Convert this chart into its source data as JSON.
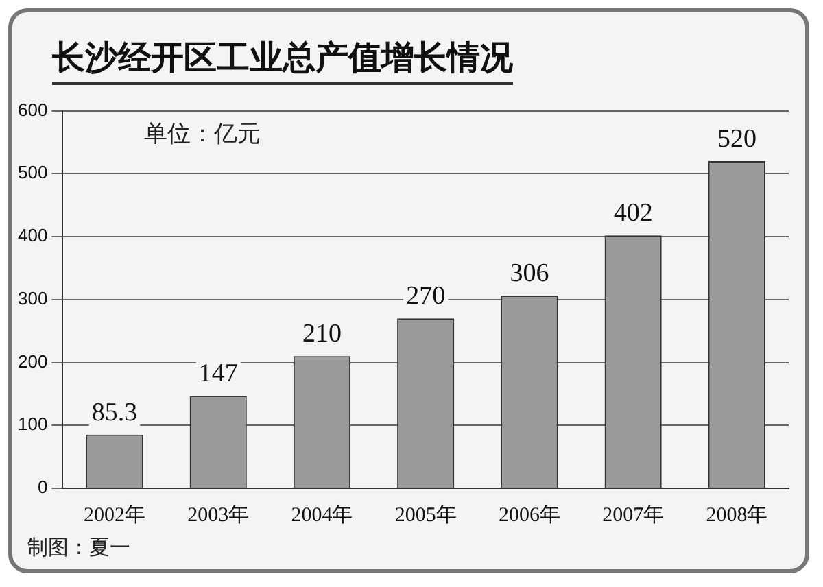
{
  "chart_data": {
    "type": "bar",
    "title": "长沙经开区工业总产值增长情况",
    "categories": [
      "2002年",
      "2003年",
      "2004年",
      "2005年",
      "2006年",
      "2007年",
      "2008年"
    ],
    "values": [
      85.3,
      147,
      210,
      270,
      306,
      402,
      520
    ],
    "color": "#9a9a9a",
    "ylim": [
      0,
      600
    ],
    "yticks": [
      0,
      100,
      200,
      300,
      400,
      500,
      600
    ],
    "grid": "y",
    "data_labels": true,
    "legend": false,
    "annotations": [
      "单位：亿元",
      "制图：夏一"
    ]
  }
}
